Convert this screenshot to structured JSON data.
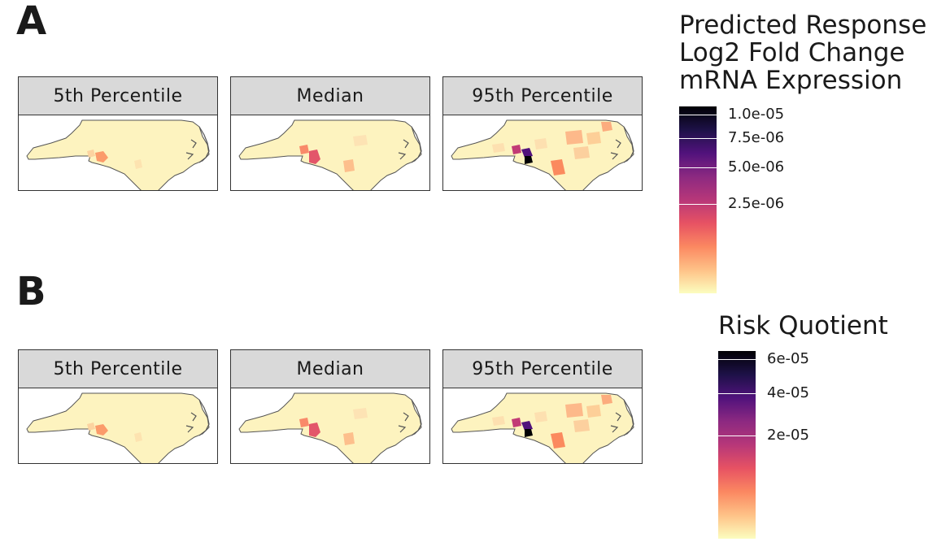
{
  "panels": [
    {
      "letter": "A",
      "facets": [
        {
          "label": "5th Percentile",
          "hotspot": "low"
        },
        {
          "label": "Median",
          "hotspot": "mid"
        },
        {
          "label": "95th Percentile",
          "hotspot": "high"
        }
      ],
      "legend": {
        "title_lines": [
          "Predicted Response",
          "Log2 Fold Change",
          "mRNA Expression"
        ],
        "ticks": [
          "1.0e-05",
          "7.5e-06",
          "5.0e-06",
          "2.5e-06"
        ],
        "gradient": [
          "#fcfdbf",
          "#fec287",
          "#fb8861",
          "#e75263",
          "#b73779",
          "#8c2981",
          "#51127c",
          "#1d1147",
          "#000004"
        ]
      }
    },
    {
      "letter": "B",
      "facets": [
        {
          "label": "5th Percentile",
          "hotspot": "low"
        },
        {
          "label": "Median",
          "hotspot": "mid"
        },
        {
          "label": "95th Percentile",
          "hotspot": "high"
        }
      ],
      "legend": {
        "title_lines": [
          "Risk Quotient"
        ],
        "ticks": [
          "6e-05",
          "4e-05",
          "2e-05"
        ],
        "gradient": [
          "#fcfdbf",
          "#fec287",
          "#fb8861",
          "#e75263",
          "#b73779",
          "#8c2981",
          "#51127c",
          "#1d1147",
          "#000004"
        ]
      }
    }
  ],
  "map_colors": {
    "base": "#fdf3bf",
    "outline": "#555555"
  }
}
